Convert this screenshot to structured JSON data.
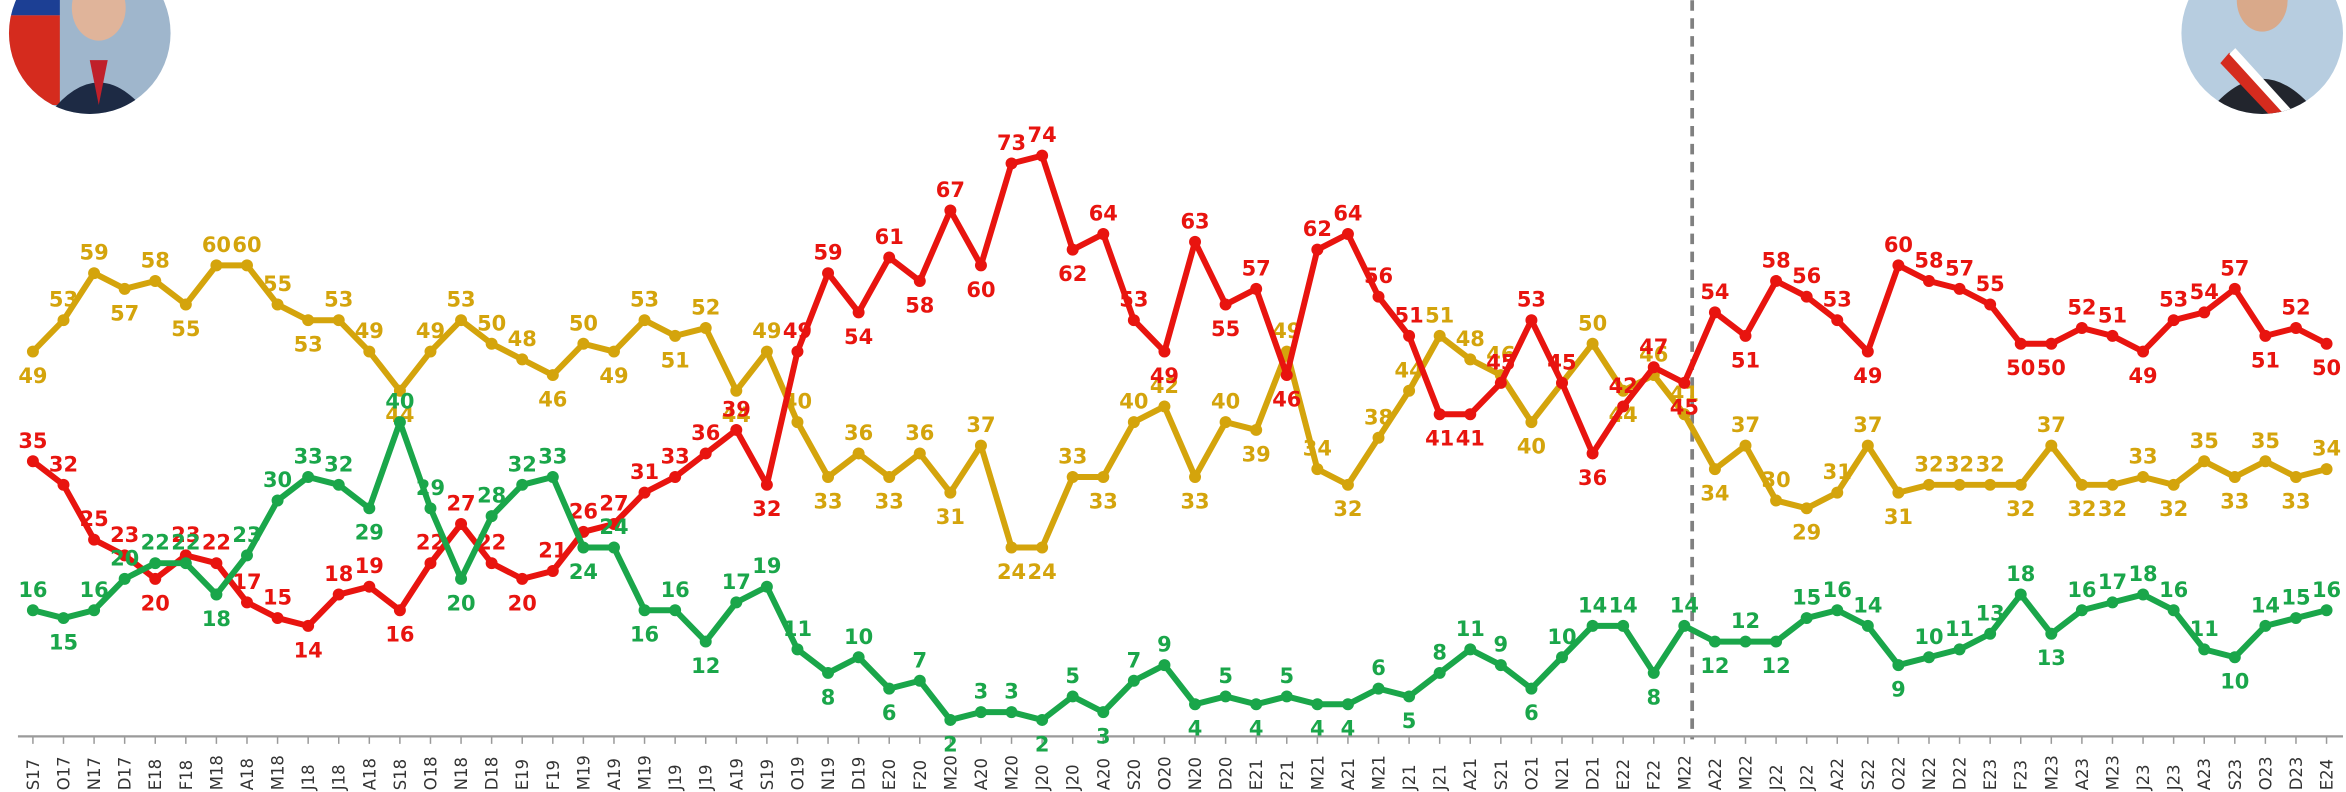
{
  "chart_data": {
    "type": "line",
    "categories": [
      "S17",
      "O17",
      "N17",
      "D17",
      "E18",
      "F18",
      "M18",
      "A18",
      "M18",
      "J18",
      "J18",
      "A18",
      "S18",
      "O18",
      "N18",
      "D18",
      "E19",
      "F19",
      "M19",
      "A19",
      "M19",
      "J19",
      "J19",
      "A19",
      "S19",
      "O19",
      "N19",
      "D19",
      "E20",
      "F20",
      "M20",
      "A20",
      "M20",
      "J20",
      "J20",
      "A20",
      "S20",
      "O20",
      "N20",
      "D20",
      "E21",
      "F21",
      "M21",
      "A21",
      "M21",
      "J21",
      "J21",
      "A21",
      "S21",
      "O21",
      "N21",
      "D21",
      "E22",
      "F22",
      "M22",
      "A22",
      "M22",
      "J22",
      "J22",
      "A22",
      "S22",
      "O22",
      "N22",
      "D22",
      "E23",
      "F23",
      "M23",
      "A23",
      "M23",
      "J23",
      "J23",
      "A23",
      "S23",
      "O23",
      "D23",
      "E24"
    ],
    "ylim": [
      0,
      90
    ],
    "series": [
      {
        "color": "#d4a40c",
        "values": [
          49,
          53,
          59,
          57,
          58,
          55,
          60,
          60,
          55,
          53,
          53,
          49,
          44,
          49,
          53,
          50,
          48,
          46,
          50,
          49,
          53,
          51,
          52,
          44,
          49,
          40,
          33,
          36,
          33,
          36,
          31,
          37,
          24,
          24,
          33,
          33,
          40,
          42,
          33,
          40,
          39,
          49,
          34,
          32,
          38,
          44,
          51,
          48,
          46,
          40,
          45,
          50,
          44,
          46,
          41,
          34,
          37,
          30,
          29,
          31,
          37,
          31,
          32,
          32,
          32,
          32,
          37,
          32,
          32,
          33,
          32,
          35,
          33,
          35,
          33,
          34
        ]
      },
      {
        "color": "#e8140f",
        "values": [
          35,
          32,
          25,
          23,
          20,
          23,
          22,
          17,
          15,
          14,
          18,
          19,
          16,
          22,
          27,
          22,
          20,
          21,
          26,
          27,
          31,
          33,
          36,
          39,
          32,
          49,
          59,
          54,
          61,
          58,
          67,
          60,
          73,
          74,
          62,
          64,
          53,
          49,
          63,
          55,
          57,
          46,
          62,
          64,
          56,
          51,
          41,
          41,
          45,
          53,
          45,
          36,
          42,
          47,
          45,
          54,
          51,
          58,
          56,
          53,
          49,
          60,
          58,
          57,
          55,
          50,
          50,
          52,
          51,
          49,
          53,
          54,
          57,
          51,
          52,
          50
        ]
      },
      {
        "color": "#1aa64a",
        "values": [
          16,
          15,
          16,
          20,
          22,
          22,
          18,
          23,
          30,
          33,
          32,
          29,
          40,
          29,
          20,
          28,
          32,
          33,
          24,
          24,
          16,
          16,
          12,
          17,
          19,
          11,
          8,
          10,
          6,
          7,
          2,
          3,
          3,
          2,
          5,
          3,
          7,
          9,
          4,
          5,
          4,
          5,
          4,
          4,
          6,
          5,
          8,
          11,
          9,
          6,
          10,
          14,
          14,
          8,
          14,
          12,
          12,
          12,
          15,
          16,
          14,
          9,
          10,
          11,
          13,
          18,
          13,
          16,
          17,
          18,
          16,
          11,
          10,
          14,
          15,
          16
        ]
      }
    ]
  }
}
